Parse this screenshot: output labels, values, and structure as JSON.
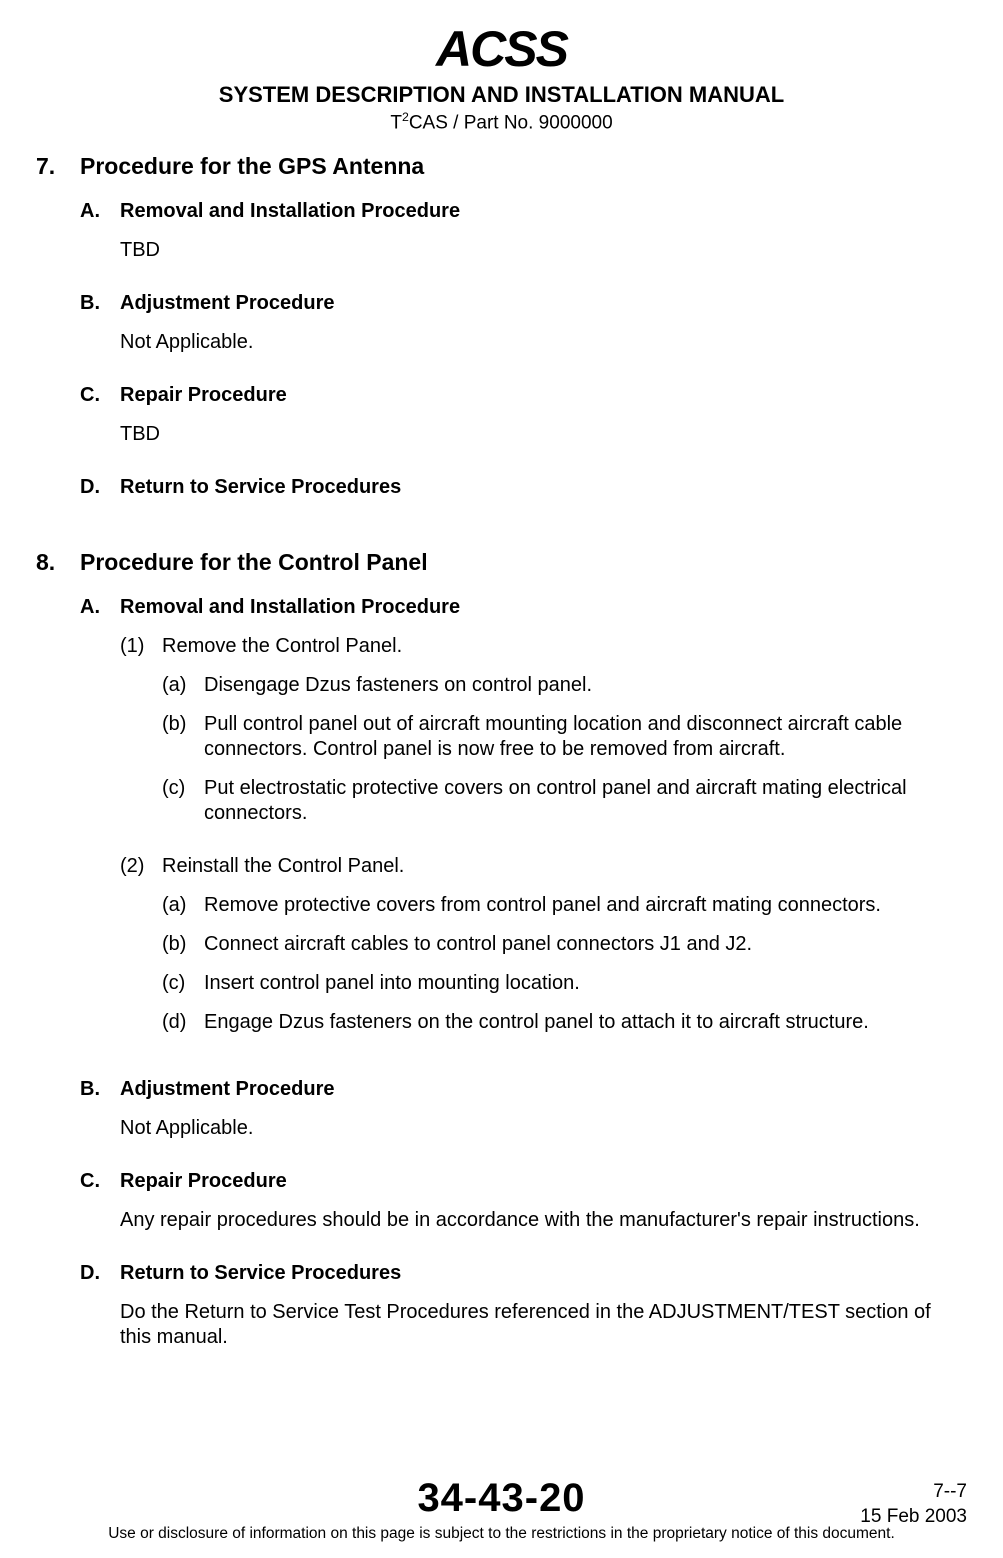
{
  "logo_text": "ACSS",
  "swoosh_color": "#d8272d",
  "header": {
    "title": "SYSTEM DESCRIPTION AND INSTALLATION MANUAL",
    "sub_prefix": "T",
    "sub_sup": "2",
    "sub_rest": "CAS / Part No. 9000000"
  },
  "section7": {
    "num": "7.",
    "title": "Procedure for the GPS Antenna",
    "A": {
      "letter": "A.",
      "title": "Removal and Installation Procedure",
      "text": "TBD"
    },
    "B": {
      "letter": "B.",
      "title": "Adjustment Procedure",
      "text": "Not Applicable."
    },
    "C": {
      "letter": "C.",
      "title": "Repair Procedure",
      "text": "TBD"
    },
    "D": {
      "letter": "D.",
      "title": "Return to Service Procedures"
    }
  },
  "section8": {
    "num": "8.",
    "title": "Procedure for the Control Panel",
    "A": {
      "letter": "A.",
      "title": "Removal and Installation Procedure",
      "step1": {
        "num": "(1)",
        "title": "Remove the Control Panel.",
        "a": {
          "l": "(a)",
          "t": "Disengage Dzus fasteners on control panel."
        },
        "b": {
          "l": "(b)",
          "t": "Pull control panel out of aircraft mounting location and disconnect aircraft cable connectors.  Control panel is now free to be removed from aircraft."
        },
        "c": {
          "l": "(c)",
          "t": "Put electrostatic protective covers on control panel and aircraft mating electrical connectors."
        }
      },
      "step2": {
        "num": "(2)",
        "title": "Reinstall the Control Panel.",
        "a": {
          "l": "(a)",
          "t": "Remove protective covers from control panel and aircraft mating connectors."
        },
        "b": {
          "l": "(b)",
          "t": "Connect aircraft cables to control panel connectors J1 and J2."
        },
        "c": {
          "l": "(c)",
          "t": "Insert control panel into mounting location."
        },
        "d": {
          "l": "(d)",
          "t": "Engage Dzus fasteners on the control panel to attach it to aircraft structure."
        }
      }
    },
    "B": {
      "letter": "B.",
      "title": "Adjustment Procedure",
      "text": "Not Applicable."
    },
    "C": {
      "letter": "C.",
      "title": "Repair Procedure",
      "text": "Any repair procedures should be in accordance with the manufacturer's repair instructions."
    },
    "D": {
      "letter": "D.",
      "title": "Return to Service Procedures",
      "text": "Do the Return to Service Test Procedures referenced in the ADJUSTMENT/TEST section of this manual."
    }
  },
  "footer": {
    "doc_number": "34-43-20",
    "page": "7--7",
    "date": "15 Feb 2003",
    "notice": "Use or disclosure of information on this page is subject to the restrictions in the proprietary notice of this document."
  }
}
